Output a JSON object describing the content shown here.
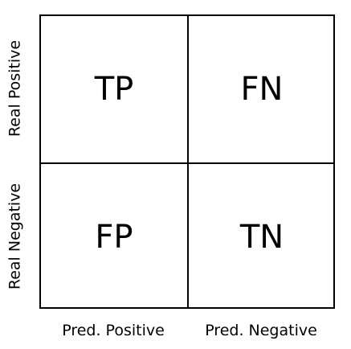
{
  "cells": {
    "tp": "TP",
    "fn": "FN",
    "fp": "FP",
    "tn": "TN"
  },
  "axis_labels": {
    "columns": [
      "Pred. Positive",
      "Pred. Negative"
    ],
    "rows": [
      "Real Positive",
      "Real Negative"
    ]
  },
  "colors": {
    "line": "#000000",
    "background": "#ffffff",
    "text": "#000000"
  }
}
